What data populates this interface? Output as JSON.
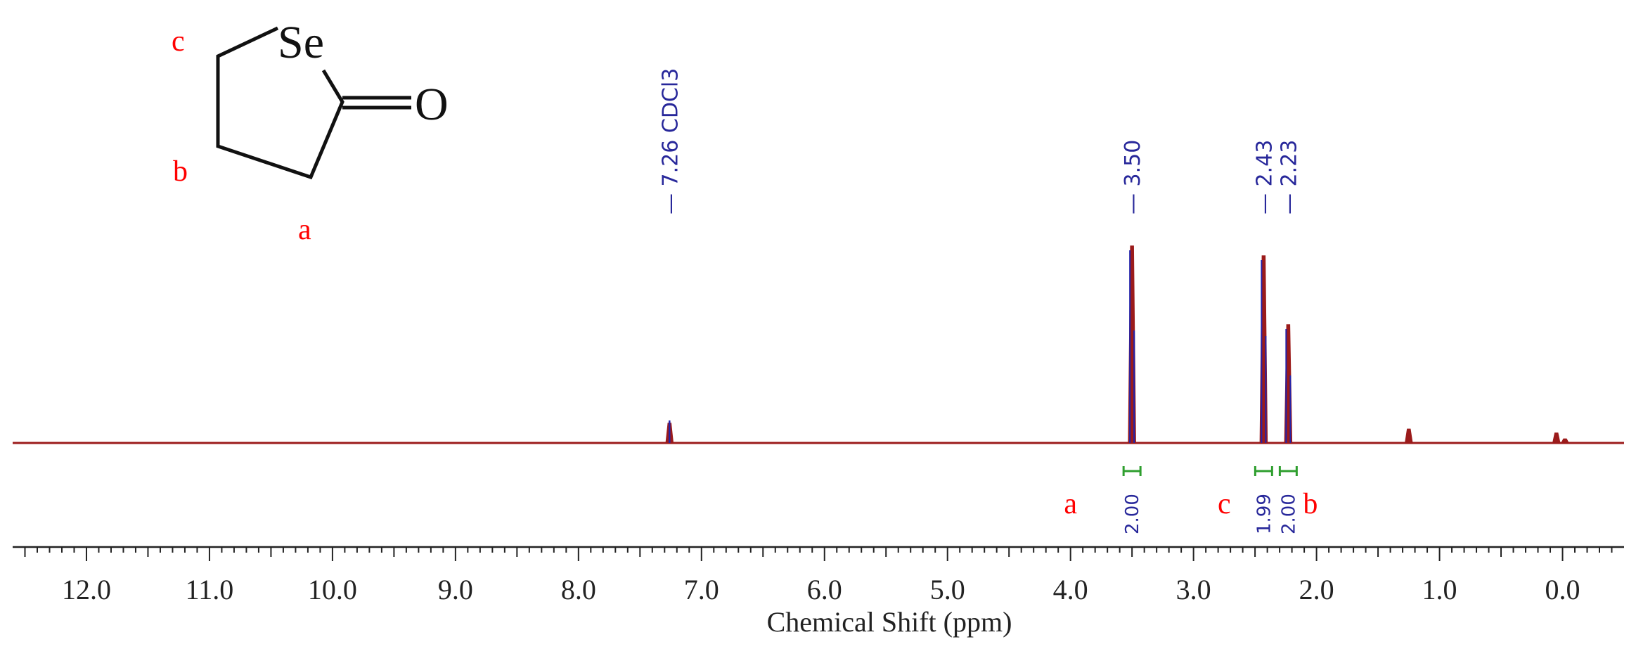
{
  "chart_data": {
    "type": "line",
    "title": "",
    "xlabel": "Chemical Shift (ppm)",
    "ylabel": "",
    "xlim": [
      12.6,
      -0.5
    ],
    "x_reversed": true,
    "grid": false,
    "major_ticks": [
      "12.0",
      "11.0",
      "10.0",
      "9.0",
      "8.0",
      "7.0",
      "6.0",
      "5.0",
      "4.0",
      "3.0",
      "2.0",
      "1.0",
      "0.0"
    ],
    "peak_labels": [
      {
        "x": 7.26,
        "text": "7.26 CDCl3"
      },
      {
        "x": 3.5,
        "text": "3.50"
      },
      {
        "x": 2.43,
        "text": "2.43"
      },
      {
        "x": 2.23,
        "text": "2.23"
      }
    ],
    "peaks": [
      {
        "x": 7.26,
        "height": 0.1
      },
      {
        "x": 3.5,
        "height": 1.0
      },
      {
        "x": 2.43,
        "height": 0.95
      },
      {
        "x": 2.23,
        "height": 0.6
      },
      {
        "x": 1.25,
        "height": 0.07
      },
      {
        "x": 0.05,
        "height": 0.05
      },
      {
        "x": -0.02,
        "height": 0.02
      }
    ],
    "integrals": [
      {
        "x": 3.5,
        "value": "2.00",
        "assignment": "a"
      },
      {
        "x": 2.43,
        "value": "1.99",
        "assignment": "c"
      },
      {
        "x": 2.23,
        "value": "2.00",
        "assignment": "b"
      }
    ],
    "colors": {
      "spectrum": "#9b1b1b",
      "labels": "#27279a",
      "integrals": "#2e9e2e",
      "assignments": "#ff0000"
    }
  },
  "structure": {
    "heteroatom": "Se",
    "carbonyl_oxygen": "O",
    "labels": {
      "a": "a",
      "b": "b",
      "c": "c"
    }
  }
}
